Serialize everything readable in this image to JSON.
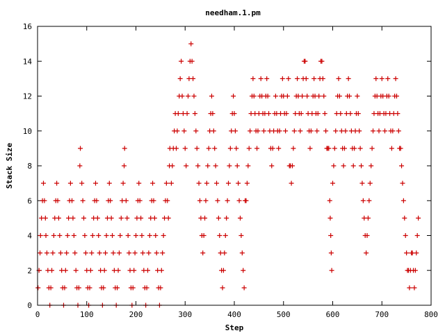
{
  "chart_data": {
    "type": "scatter",
    "title": "needham.1.pm",
    "xlabel": "Step",
    "ylabel": "Stack Size",
    "xlim": [
      0,
      800
    ],
    "ylim": [
      0,
      16
    ],
    "x_ticks": [
      0,
      100,
      200,
      300,
      400,
      500,
      600,
      700,
      800
    ],
    "y_ticks": [
      0,
      2,
      4,
      6,
      8,
      10,
      12,
      14,
      16
    ],
    "grid": false,
    "legend": "none",
    "marker": "plus",
    "color": "#cc0000",
    "points": [
      [
        1,
        1
      ],
      [
        3,
        2
      ],
      [
        5,
        3
      ],
      [
        6,
        4
      ],
      [
        8,
        5
      ],
      [
        10,
        6
      ],
      [
        12,
        7
      ],
      [
        14,
        6
      ],
      [
        16,
        5
      ],
      [
        17,
        4
      ],
      [
        19,
        3
      ],
      [
        21,
        2
      ],
      [
        23,
        1
      ],
      [
        25,
        0
      ],
      [
        27,
        1
      ],
      [
        29,
        2
      ],
      [
        31,
        3
      ],
      [
        33,
        4
      ],
      [
        35,
        5
      ],
      [
        37,
        6
      ],
      [
        39,
        7
      ],
      [
        41,
        6
      ],
      [
        43,
        5
      ],
      [
        45,
        4
      ],
      [
        47,
        3
      ],
      [
        49,
        2
      ],
      [
        51,
        1
      ],
      [
        53,
        0
      ],
      [
        55,
        1
      ],
      [
        57,
        2
      ],
      [
        59,
        3
      ],
      [
        61,
        4
      ],
      [
        63,
        5
      ],
      [
        65,
        6
      ],
      [
        67,
        7
      ],
      [
        70,
        6
      ],
      [
        72,
        5
      ],
      [
        74,
        4
      ],
      [
        76,
        3
      ],
      [
        78,
        2
      ],
      [
        80,
        1
      ],
      [
        82,
        0
      ],
      [
        84,
        1
      ],
      [
        86,
        8
      ],
      [
        87,
        9
      ],
      [
        90,
        7
      ],
      [
        92,
        6
      ],
      [
        94,
        5
      ],
      [
        96,
        4
      ],
      [
        98,
        3
      ],
      [
        100,
        2
      ],
      [
        102,
        1
      ],
      [
        104,
        0
      ],
      [
        106,
        1
      ],
      [
        108,
        2
      ],
      [
        110,
        3
      ],
      [
        112,
        4
      ],
      [
        114,
        5
      ],
      [
        116,
        6
      ],
      [
        118,
        7
      ],
      [
        120,
        6
      ],
      [
        122,
        5
      ],
      [
        124,
        4
      ],
      [
        126,
        3
      ],
      [
        128,
        2
      ],
      [
        130,
        1
      ],
      [
        132,
        0
      ],
      [
        134,
        1
      ],
      [
        136,
        2
      ],
      [
        138,
        3
      ],
      [
        140,
        4
      ],
      [
        142,
        5
      ],
      [
        144,
        6
      ],
      [
        146,
        7
      ],
      [
        148,
        6
      ],
      [
        150,
        5
      ],
      [
        152,
        4
      ],
      [
        154,
        3
      ],
      [
        156,
        2
      ],
      [
        158,
        1
      ],
      [
        160,
        0
      ],
      [
        162,
        1
      ],
      [
        164,
        2
      ],
      [
        166,
        3
      ],
      [
        168,
        4
      ],
      [
        170,
        5
      ],
      [
        172,
        6
      ],
      [
        174,
        7
      ],
      [
        176,
        8
      ],
      [
        177,
        9
      ],
      [
        180,
        6
      ],
      [
        182,
        5
      ],
      [
        184,
        4
      ],
      [
        186,
        3
      ],
      [
        188,
        2
      ],
      [
        190,
        1
      ],
      [
        192,
        0
      ],
      [
        194,
        1
      ],
      [
        196,
        2
      ],
      [
        198,
        3
      ],
      [
        200,
        4
      ],
      [
        202,
        5
      ],
      [
        204,
        6
      ],
      [
        206,
        7
      ],
      [
        208,
        6
      ],
      [
        210,
        5
      ],
      [
        212,
        4
      ],
      [
        214,
        3
      ],
      [
        216,
        2
      ],
      [
        218,
        1
      ],
      [
        220,
        0
      ],
      [
        222,
        1
      ],
      [
        224,
        2
      ],
      [
        226,
        3
      ],
      [
        228,
        4
      ],
      [
        230,
        5
      ],
      [
        232,
        6
      ],
      [
        234,
        7
      ],
      [
        236,
        6
      ],
      [
        238,
        5
      ],
      [
        240,
        4
      ],
      [
        242,
        3
      ],
      [
        244,
        2
      ],
      [
        246,
        1
      ],
      [
        248,
        0
      ],
      [
        250,
        1
      ],
      [
        252,
        2
      ],
      [
        254,
        3
      ],
      [
        256,
        4
      ],
      [
        258,
        5
      ],
      [
        260,
        6
      ],
      [
        262,
        7
      ],
      [
        264,
        6
      ],
      [
        266,
        5
      ],
      [
        268,
        8
      ],
      [
        269,
        9
      ],
      [
        272,
        7
      ],
      [
        274,
        8
      ],
      [
        276,
        9
      ],
      [
        278,
        10
      ],
      [
        280,
        11
      ],
      [
        282,
        9
      ],
      [
        284,
        10
      ],
      [
        286,
        11
      ],
      [
        288,
        12
      ],
      [
        290,
        13
      ],
      [
        292,
        14
      ],
      [
        294,
        12
      ],
      [
        296,
        11
      ],
      [
        298,
        10
      ],
      [
        300,
        9
      ],
      [
        302,
        8
      ],
      [
        304,
        11
      ],
      [
        306,
        12
      ],
      [
        308,
        13
      ],
      [
        310,
        14
      ],
      [
        312,
        15
      ],
      [
        314,
        14
      ],
      [
        316,
        13
      ],
      [
        318,
        12
      ],
      [
        320,
        11
      ],
      [
        322,
        10
      ],
      [
        324,
        9
      ],
      [
        326,
        8
      ],
      [
        328,
        7
      ],
      [
        330,
        6
      ],
      [
        332,
        5
      ],
      [
        334,
        4
      ],
      [
        336,
        3
      ],
      [
        338,
        4
      ],
      [
        340,
        5
      ],
      [
        342,
        6
      ],
      [
        344,
        7
      ],
      [
        346,
        8
      ],
      [
        348,
        9
      ],
      [
        350,
        10
      ],
      [
        352,
        11
      ],
      [
        354,
        12
      ],
      [
        356,
        11
      ],
      [
        358,
        10
      ],
      [
        360,
        9
      ],
      [
        362,
        8
      ],
      [
        364,
        7
      ],
      [
        366,
        6
      ],
      [
        368,
        5
      ],
      [
        370,
        4
      ],
      [
        372,
        3
      ],
      [
        374,
        2
      ],
      [
        376,
        1
      ],
      [
        378,
        2
      ],
      [
        380,
        3
      ],
      [
        382,
        4
      ],
      [
        384,
        5
      ],
      [
        386,
        6
      ],
      [
        388,
        7
      ],
      [
        390,
        8
      ],
      [
        392,
        9
      ],
      [
        394,
        10
      ],
      [
        396,
        11
      ],
      [
        398,
        12
      ],
      [
        400,
        11
      ],
      [
        402,
        10
      ],
      [
        404,
        9
      ],
      [
        406,
        8
      ],
      [
        408,
        7
      ],
      [
        410,
        6
      ],
      [
        412,
        5
      ],
      [
        414,
        4
      ],
      [
        416,
        3
      ],
      [
        418,
        2
      ],
      [
        420,
        1
      ],
      [
        422,
        6
      ],
      [
        424,
        6
      ],
      [
        426,
        7
      ],
      [
        428,
        8
      ],
      [
        430,
        9
      ],
      [
        432,
        10
      ],
      [
        434,
        11
      ],
      [
        436,
        12
      ],
      [
        438,
        13
      ],
      [
        440,
        12
      ],
      [
        442,
        11
      ],
      [
        444,
        10
      ],
      [
        446,
        9
      ],
      [
        448,
        10
      ],
      [
        450,
        11
      ],
      [
        452,
        12
      ],
      [
        454,
        13
      ],
      [
        456,
        12
      ],
      [
        458,
        11
      ],
      [
        460,
        10
      ],
      [
        462,
        11
      ],
      [
        464,
        12
      ],
      [
        466,
        13
      ],
      [
        468,
        12
      ],
      [
        470,
        11
      ],
      [
        472,
        10
      ],
      [
        474,
        9
      ],
      [
        476,
        8
      ],
      [
        478,
        9
      ],
      [
        480,
        10
      ],
      [
        482,
        11
      ],
      [
        484,
        12
      ],
      [
        486,
        11
      ],
      [
        488,
        10
      ],
      [
        490,
        9
      ],
      [
        492,
        10
      ],
      [
        494,
        11
      ],
      [
        496,
        12
      ],
      [
        498,
        13
      ],
      [
        500,
        12
      ],
      [
        502,
        11
      ],
      [
        504,
        10
      ],
      [
        506,
        11
      ],
      [
        508,
        12
      ],
      [
        510,
        13
      ],
      [
        512,
        8
      ],
      [
        514,
        8
      ],
      [
        516,
        7
      ],
      [
        518,
        8
      ],
      [
        520,
        9
      ],
      [
        522,
        10
      ],
      [
        524,
        11
      ],
      [
        526,
        12
      ],
      [
        528,
        13
      ],
      [
        530,
        12
      ],
      [
        532,
        11
      ],
      [
        534,
        10
      ],
      [
        536,
        11
      ],
      [
        538,
        12
      ],
      [
        540,
        13
      ],
      [
        542,
        14
      ],
      [
        544,
        14
      ],
      [
        546,
        13
      ],
      [
        548,
        12
      ],
      [
        550,
        11
      ],
      [
        552,
        10
      ],
      [
        554,
        9
      ],
      [
        556,
        10
      ],
      [
        558,
        11
      ],
      [
        560,
        12
      ],
      [
        562,
        13
      ],
      [
        564,
        12
      ],
      [
        566,
        11
      ],
      [
        568,
        10
      ],
      [
        570,
        11
      ],
      [
        572,
        12
      ],
      [
        574,
        13
      ],
      [
        576,
        14
      ],
      [
        578,
        14
      ],
      [
        580,
        13
      ],
      [
        582,
        12
      ],
      [
        584,
        11
      ],
      [
        586,
        10
      ],
      [
        588,
        9
      ],
      [
        590,
        9
      ],
      [
        592,
        9
      ],
      [
        594,
        6
      ],
      [
        595,
        5
      ],
      [
        596,
        4
      ],
      [
        597,
        3
      ],
      [
        598,
        2
      ],
      [
        600,
        7
      ],
      [
        602,
        8
      ],
      [
        604,
        9
      ],
      [
        606,
        10
      ],
      [
        608,
        11
      ],
      [
        610,
        12
      ],
      [
        612,
        13
      ],
      [
        614,
        12
      ],
      [
        616,
        11
      ],
      [
        618,
        10
      ],
      [
        620,
        9
      ],
      [
        622,
        8
      ],
      [
        624,
        9
      ],
      [
        626,
        10
      ],
      [
        628,
        11
      ],
      [
        630,
        12
      ],
      [
        632,
        13
      ],
      [
        634,
        12
      ],
      [
        636,
        11
      ],
      [
        638,
        10
      ],
      [
        640,
        9
      ],
      [
        642,
        8
      ],
      [
        644,
        9
      ],
      [
        646,
        10
      ],
      [
        648,
        11
      ],
      [
        650,
        12
      ],
      [
        652,
        11
      ],
      [
        654,
        10
      ],
      [
        656,
        9
      ],
      [
        658,
        8
      ],
      [
        660,
        7
      ],
      [
        662,
        6
      ],
      [
        664,
        5
      ],
      [
        666,
        4
      ],
      [
        668,
        3
      ],
      [
        670,
        4
      ],
      [
        672,
        5
      ],
      [
        674,
        6
      ],
      [
        676,
        7
      ],
      [
        678,
        8
      ],
      [
        680,
        9
      ],
      [
        682,
        10
      ],
      [
        684,
        11
      ],
      [
        686,
        12
      ],
      [
        688,
        13
      ],
      [
        690,
        12
      ],
      [
        692,
        11
      ],
      [
        694,
        10
      ],
      [
        696,
        11
      ],
      [
        698,
        12
      ],
      [
        700,
        13
      ],
      [
        702,
        12
      ],
      [
        704,
        11
      ],
      [
        706,
        10
      ],
      [
        708,
        11
      ],
      [
        710,
        12
      ],
      [
        712,
        13
      ],
      [
        714,
        12
      ],
      [
        716,
        11
      ],
      [
        718,
        10
      ],
      [
        720,
        9
      ],
      [
        722,
        10
      ],
      [
        724,
        11
      ],
      [
        726,
        12
      ],
      [
        728,
        13
      ],
      [
        730,
        12
      ],
      [
        732,
        11
      ],
      [
        734,
        10
      ],
      [
        736,
        9
      ],
      [
        738,
        9
      ],
      [
        740,
        8
      ],
      [
        742,
        7
      ],
      [
        744,
        6
      ],
      [
        746,
        5
      ],
      [
        748,
        4
      ],
      [
        750,
        3
      ],
      [
        752,
        2
      ],
      [
        754,
        2
      ],
      [
        756,
        1
      ],
      [
        758,
        2
      ],
      [
        760,
        3
      ],
      [
        762,
        3
      ],
      [
        764,
        2
      ],
      [
        766,
        1
      ],
      [
        768,
        2
      ],
      [
        770,
        3
      ],
      [
        772,
        4
      ],
      [
        774,
        5
      ]
    ]
  }
}
